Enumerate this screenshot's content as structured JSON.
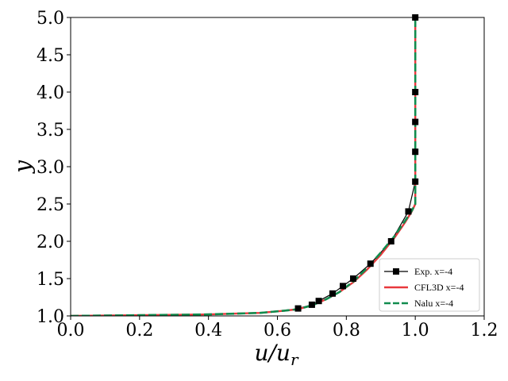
{
  "chart_data": {
    "type": "line",
    "xlabel": "u/u",
    "xlabel_sub": "r",
    "ylabel": "y",
    "xlim": [
      0.0,
      1.2
    ],
    "ylim": [
      1.0,
      5.0
    ],
    "xticks": [
      "0.0",
      "0.2",
      "0.4",
      "0.6",
      "0.8",
      "1.0",
      "1.2"
    ],
    "yticks": [
      "1.0",
      "1.5",
      "2.0",
      "2.5",
      "3.0",
      "3.5",
      "4.0",
      "4.5",
      "5.0"
    ],
    "xtick_values": [
      0.0,
      0.2,
      0.4,
      0.6,
      0.8,
      1.0,
      1.2
    ],
    "ytick_values": [
      1.0,
      1.5,
      2.0,
      2.5,
      3.0,
      3.5,
      4.0,
      4.5,
      5.0
    ],
    "grid": false,
    "legend_position": "bottom-right",
    "series": [
      {
        "name": "Exp. x=-4",
        "style": "line-square-marker",
        "color": "#000000",
        "x": [
          0.66,
          0.7,
          0.72,
          0.76,
          0.79,
          0.82,
          0.87,
          0.93,
          0.98,
          1.0,
          1.0,
          1.0,
          1.0,
          1.0
        ],
        "y": [
          1.1,
          1.15,
          1.2,
          1.3,
          1.4,
          1.5,
          1.7,
          2.0,
          2.4,
          2.8,
          3.2,
          3.6,
          4.0,
          5.0
        ]
      },
      {
        "name": "CFL3D x=-4",
        "style": "solid",
        "color": "#e8383d",
        "x": [
          0.0,
          0.2,
          0.4,
          0.55,
          0.62,
          0.66,
          0.7,
          0.74,
          0.78,
          0.82,
          0.86,
          0.9,
          0.94,
          0.97,
          0.99,
          1.0,
          1.0,
          1.0,
          1.0
        ],
        "y": [
          1.0,
          1.01,
          1.02,
          1.04,
          1.07,
          1.09,
          1.14,
          1.22,
          1.32,
          1.45,
          1.62,
          1.82,
          2.05,
          2.25,
          2.4,
          2.5,
          3.0,
          4.0,
          5.0
        ]
      },
      {
        "name": "Nalu x=-4",
        "style": "dashed",
        "color": "#118c4e",
        "x": [
          0.0,
          0.2,
          0.4,
          0.55,
          0.62,
          0.66,
          0.7,
          0.74,
          0.78,
          0.82,
          0.86,
          0.9,
          0.94,
          0.97,
          0.99,
          1.0,
          1.0,
          1.0,
          1.0
        ],
        "y": [
          1.0,
          1.01,
          1.02,
          1.04,
          1.07,
          1.09,
          1.14,
          1.22,
          1.32,
          1.46,
          1.64,
          1.85,
          2.07,
          2.27,
          2.41,
          2.5,
          3.0,
          4.0,
          5.0
        ]
      }
    ]
  }
}
